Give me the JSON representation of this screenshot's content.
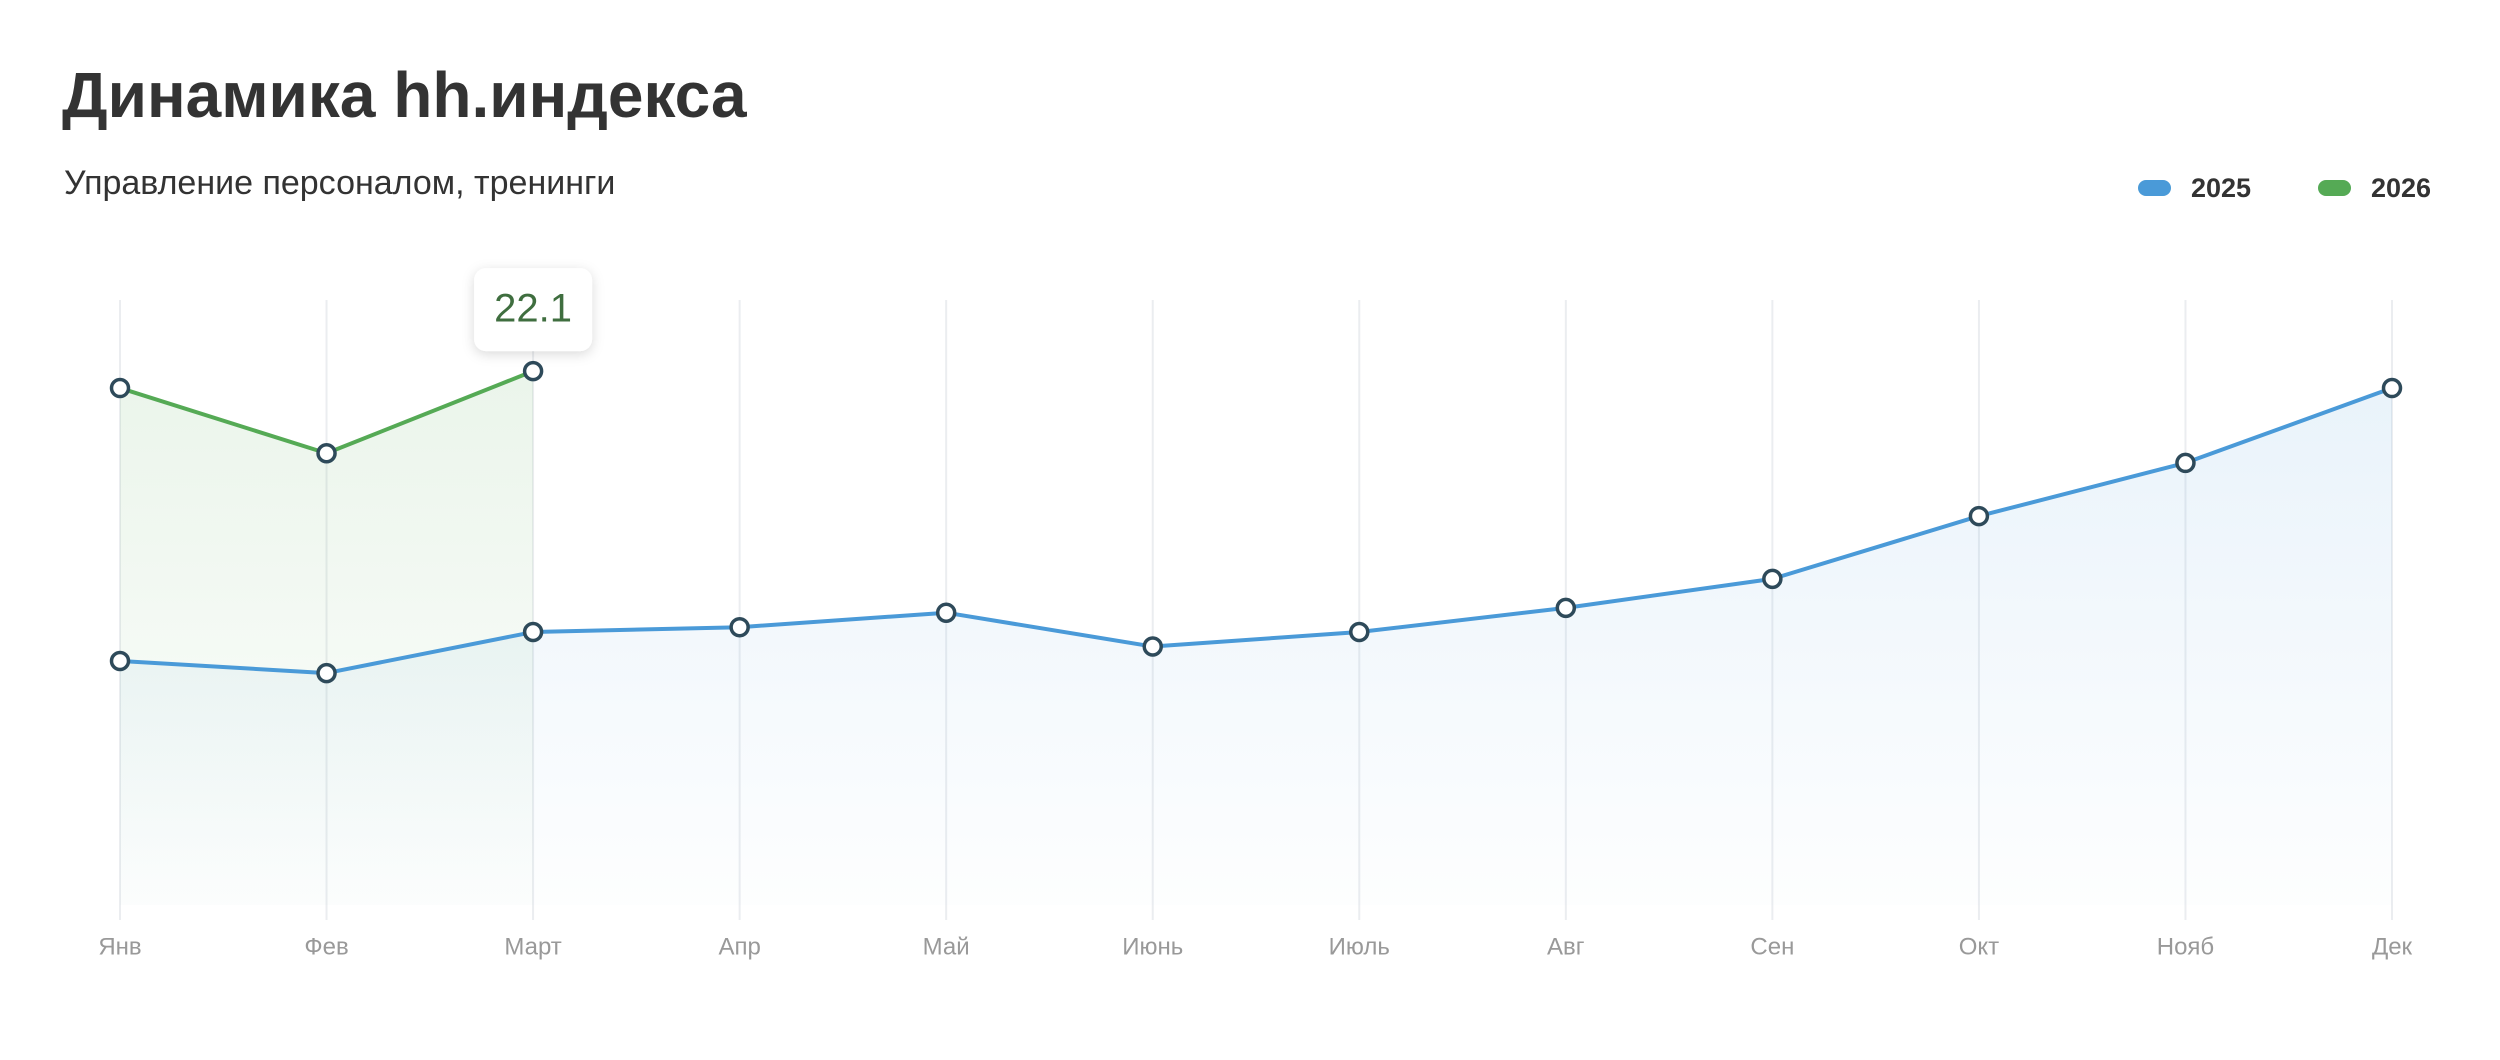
{
  "chart_data": {
    "type": "line",
    "title": "Динамика hh.индекса",
    "subtitle": "Управление персоналом, тренинги",
    "categories": [
      "Янв",
      "Фев",
      "Март",
      "Апр",
      "Май",
      "Июнь",
      "Июль",
      "Авг",
      "Сен",
      "Окт",
      "Нояб",
      "Дек"
    ],
    "series": [
      {
        "name": "2025",
        "color": "#4a9ad8",
        "values": [
          10.1,
          9.6,
          11.3,
          11.5,
          12.1,
          10.7,
          11.3,
          12.3,
          13.5,
          16.1,
          18.3,
          21.4
        ]
      },
      {
        "name": "2026",
        "color": "#55aa55",
        "values": [
          21.4,
          18.7,
          22.1,
          null,
          null,
          null,
          null,
          null,
          null,
          null,
          null,
          null
        ]
      }
    ],
    "ylim": [
      0,
      25.5
    ],
    "legend": "top-right"
  }
}
